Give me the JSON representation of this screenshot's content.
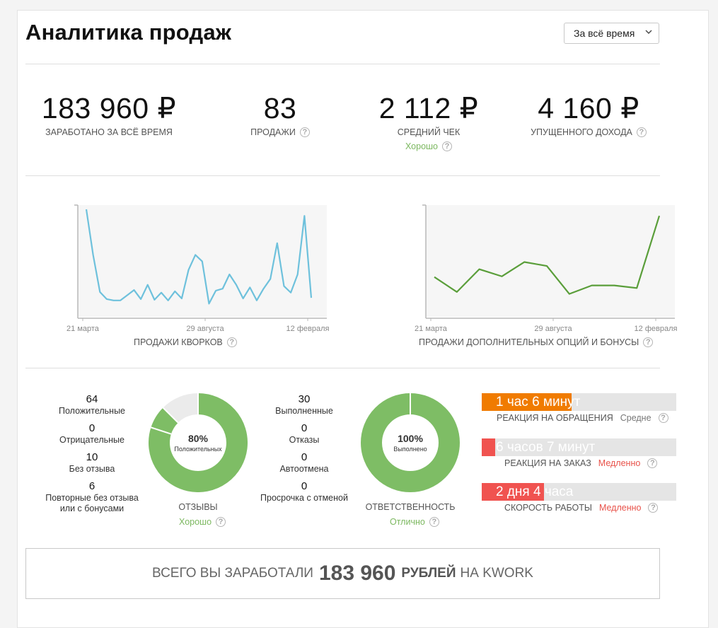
{
  "header": {
    "title": "Аналитика продаж",
    "period": "За всё время"
  },
  "stats": [
    {
      "value": "183 960 ₽",
      "label": "ЗАРАБОТАНО ЗА ВСЁ ВРЕМЯ"
    },
    {
      "value": "83",
      "label": "ПРОДАЖИ"
    },
    {
      "value": "2 112 ₽",
      "label": "СРЕДНИЙ ЧЕК",
      "note": "Хорошо"
    },
    {
      "value": "4 160 ₽",
      "label": "УПУЩЕННОГО ДОХОДА"
    }
  ],
  "help_icon": "question-circle-icon",
  "chart_data": [
    {
      "type": "line",
      "title": "ПРОДАЖИ КВОРКОВ",
      "x_ticks": [
        "21 марта",
        "29 августа",
        "12 февраля"
      ],
      "color": "#6ec1dc",
      "grid": false,
      "values": [
        15,
        8,
        2.3,
        1.2,
        1,
        1,
        1.8,
        2.6,
        1.2,
        3.4,
        1.1,
        2.2,
        1,
        2.4,
        1.3,
        5.7,
        8,
        7,
        0.5,
        2.5,
        2.8,
        5,
        3.4,
        1.3,
        3,
        1,
        2.8,
        4.3,
        9.8,
        3.2,
        2.2,
        5,
        14,
        1.4
      ]
    },
    {
      "type": "line",
      "title": "ПРОДАЖИ ДОПОЛНИТЕЛЬНЫХ ОПЦИЙ И БОНУСЫ",
      "x_ticks": [
        "21 марта",
        "29 августа",
        "12 февраля"
      ],
      "color": "#5a9e3a",
      "grid": false,
      "values": [
        4.6,
        2.3,
        5.8,
        4.7,
        6.9,
        6.3,
        2,
        3.3,
        3.3,
        2.9,
        14
      ]
    }
  ],
  "reviews": {
    "items": [
      {
        "num": "64",
        "text": "Положительные"
      },
      {
        "num": "0",
        "text": "Отрицательные"
      },
      {
        "num": "10",
        "text": "Без отзыва"
      },
      {
        "num": "6",
        "text": "Повторные без отзыва или с бонусами"
      }
    ],
    "donut": {
      "percent": "80%",
      "label": "Положительных",
      "segments": [
        64,
        6,
        10
      ],
      "colors": [
        "#7ebd65",
        "#7ebd65",
        "#ebebeb"
      ]
    },
    "caption": "ОТЗЫВЫ",
    "status": "Хорошо"
  },
  "responsibility": {
    "items": [
      {
        "num": "30",
        "text": "Выполненные"
      },
      {
        "num": "0",
        "text": "Отказы"
      },
      {
        "num": "0",
        "text": "Автоотмена"
      },
      {
        "num": "0",
        "text": "Просрочка с отменой"
      }
    ],
    "donut": {
      "percent": "100%",
      "label": "Выполнено",
      "segments": [
        100
      ],
      "colors": [
        "#7ebd65"
      ]
    },
    "caption": "ОТВЕТСТВЕННОСТЬ",
    "status": "Отлично"
  },
  "bars": [
    {
      "text": "1 час 6 минут",
      "caption": "РЕАКЦИЯ НА ОБРАЩЕНИЯ",
      "rating": "Средне",
      "fill": 0.46,
      "color": "#f07b00",
      "bad": false
    },
    {
      "text": "6 часов 7 минут",
      "caption": "РЕАКЦИЯ НА ЗАКАЗ",
      "rating": "Медленно",
      "fill": 0.07,
      "color": "#f05350",
      "bad": true
    },
    {
      "text": "2 дня 4 часа",
      "caption": "СКОРОСТЬ РАБОТЫ",
      "rating": "Медленно",
      "fill": 0.32,
      "color": "#f05350",
      "bad": true
    }
  ],
  "total": {
    "prefix": "ВСЕГО ВЫ ЗАРАБОТАЛИ",
    "amount": "183 960",
    "unit": "РУБЛЕЙ",
    "suffix": "НА KWORK"
  }
}
